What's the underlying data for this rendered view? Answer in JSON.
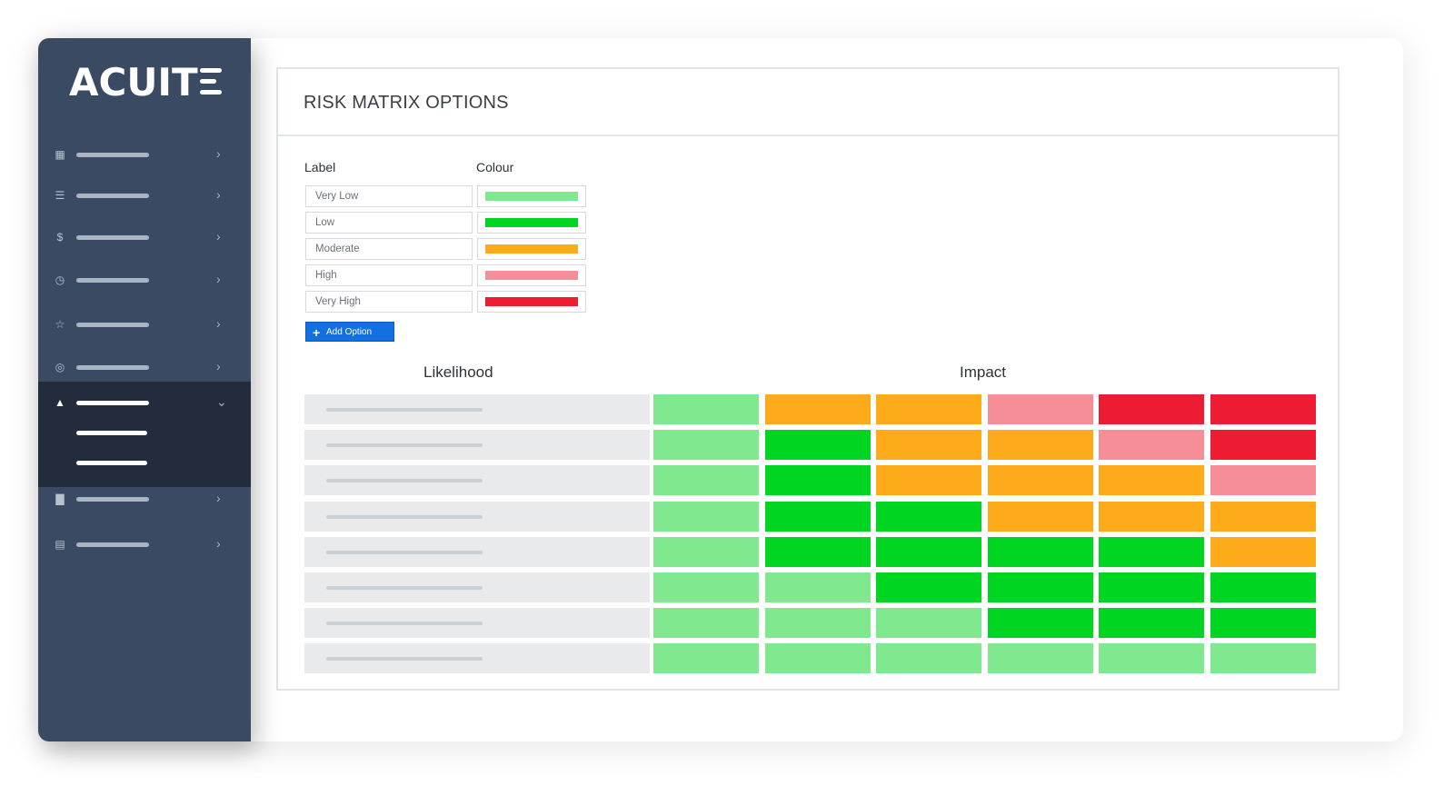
{
  "brand": {
    "logo_text": "ACUIT"
  },
  "sidebar": {
    "items": [
      {
        "icon": "dashboard-icon",
        "glyph": "▦"
      },
      {
        "icon": "list-icon",
        "glyph": "☰"
      },
      {
        "icon": "dollar-icon",
        "glyph": "$"
      },
      {
        "icon": "clock-icon",
        "glyph": "◷"
      },
      {
        "icon": "star-icon",
        "glyph": "☆"
      },
      {
        "icon": "support-icon",
        "glyph": "◎"
      },
      {
        "icon": "warning-icon",
        "glyph": "▲",
        "active": true,
        "expanded": true
      },
      {
        "icon": "file-icon",
        "glyph": "▇"
      },
      {
        "icon": "document-icon",
        "glyph": "▤"
      }
    ]
  },
  "page": {
    "title": "RISK MATRIX OPTIONS",
    "label_header": "Label",
    "colour_header": "Colour",
    "add_option_label": "Add Option"
  },
  "options": [
    {
      "label": "Very Low",
      "colour": "#80e88f"
    },
    {
      "label": "Low",
      "colour": "#00d622"
    },
    {
      "label": "Moderate",
      "colour": "#fdab1b"
    },
    {
      "label": "High",
      "colour": "#f58e97"
    },
    {
      "label": "Very High",
      "colour": "#ed1c33"
    }
  ],
  "matrix": {
    "likelihood_header": "Likelihood",
    "impact_header": "Impact",
    "rows": [
      [
        "Very Low",
        "Moderate",
        "Moderate",
        "High",
        "Very High",
        "Very High"
      ],
      [
        "Very Low",
        "Low",
        "Moderate",
        "Moderate",
        "High",
        "Very High"
      ],
      [
        "Very Low",
        "Low",
        "Moderate",
        "Moderate",
        "Moderate",
        "High"
      ],
      [
        "Very Low",
        "Low",
        "Low",
        "Moderate",
        "Moderate",
        "Moderate"
      ],
      [
        "Very Low",
        "Low",
        "Low",
        "Low",
        "Low",
        "Moderate"
      ],
      [
        "Very Low",
        "Very Low",
        "Low",
        "Low",
        "Low",
        "Low"
      ],
      [
        "Very Low",
        "Very Low",
        "Very Low",
        "Low",
        "Low",
        "Low"
      ],
      [
        "Very Low",
        "Very Low",
        "Very Low",
        "Very Low",
        "Very Low",
        "Very Low"
      ]
    ]
  }
}
